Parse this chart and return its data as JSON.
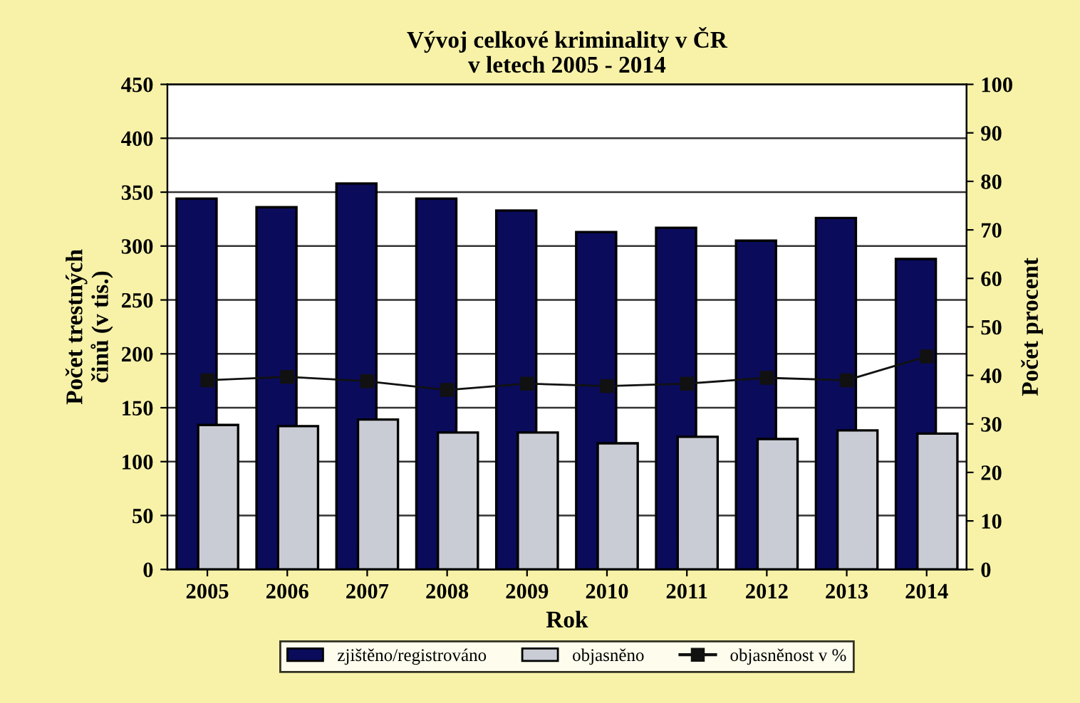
{
  "chart_data": {
    "type": "bar",
    "title": "Vývoj celkové kriminality v ČR\nv letech 2005 - 2014",
    "xlabel": "Rok",
    "ylabel": "Počet trestných\nčinů (v tis.)",
    "y2label": "Počet procent",
    "categories": [
      "2005",
      "2006",
      "2007",
      "2008",
      "2009",
      "2010",
      "2011",
      "2012",
      "2013",
      "2014"
    ],
    "series": [
      {
        "name": "zjištěno/registrováno",
        "color": "#0b0b5c",
        "values": [
          344,
          336,
          358,
          344,
          333,
          313,
          317,
          305,
          326,
          288
        ]
      },
      {
        "name": "objasněno",
        "color": "#c9ccd4",
        "values": [
          134,
          133,
          139,
          127,
          127,
          117,
          123,
          121,
          129,
          126
        ]
      },
      {
        "name": "objasněnost v %",
        "type": "line",
        "axis": "y2",
        "color": "#111111",
        "marker": "square",
        "values": [
          39.0,
          39.7,
          38.8,
          37.0,
          38.3,
          37.8,
          38.3,
          39.5,
          39.0,
          43.9
        ]
      }
    ],
    "ylim": [
      0,
      450
    ],
    "yticks": [
      0,
      50,
      100,
      150,
      200,
      250,
      300,
      350,
      400,
      450
    ],
    "y2lim": [
      0,
      100
    ],
    "y2ticks": [
      0,
      10,
      20,
      30,
      40,
      50,
      60,
      70,
      80,
      90,
      100
    ],
    "grid": "y",
    "legend": "bottom"
  }
}
